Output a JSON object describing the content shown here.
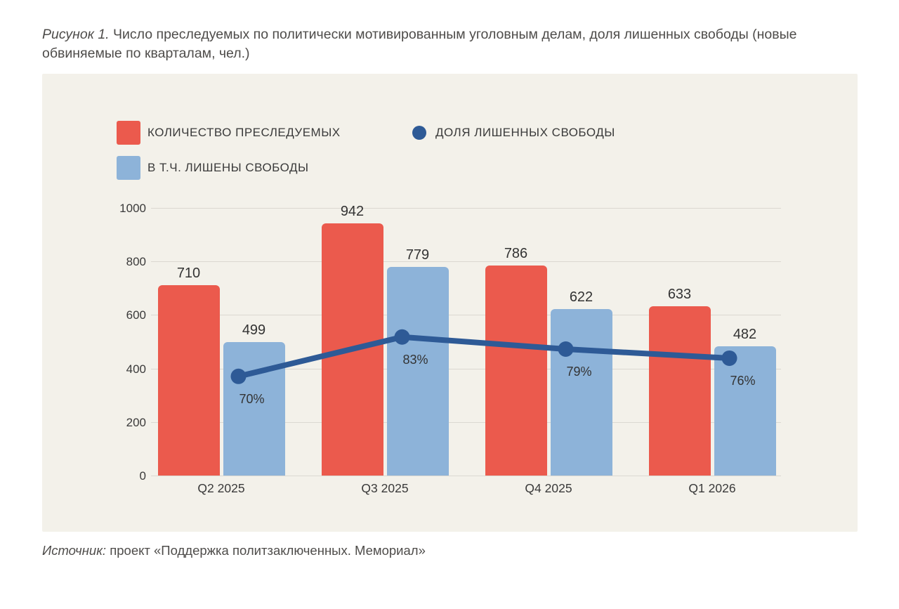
{
  "page": {
    "title_prefix": "Рисунок 1.",
    "title_rest": "Число преследуемых по политически мотивированным уголовным делам, доля лишенных свободы (новые обвиняемые по кварталам, чел.)",
    "source_prefix": "Источник:",
    "source_text": "проект «Поддержка политзаключенных. Мемориал»"
  },
  "legend": {
    "prosecuted_label": "КОЛИЧЕСТВО ПРЕСЛЕДУЕМЫХ",
    "deprived_share_label": "ДОЛЯ ЛИШЕННЫХ СВОБОДЫ",
    "deprived_label": "В Т.Ч. ЛИШЕНЫ СВОБОДЫ"
  },
  "colors": {
    "prosecuted_bar": "#EB5A4D",
    "deprived_bar": "#8DB3D9",
    "trend_line": "#2E5A96",
    "panel_background": "#F3F1EA",
    "grid_line": "#DBD8D1",
    "text": "#3A3A3A"
  },
  "chart_data": {
    "type": "bar",
    "categories": [
      "Q2 2025",
      "Q3 2025",
      "Q4 2025",
      "Q1 2026"
    ],
    "series": [
      {
        "key": "prosecuted",
        "name": "КОЛИЧЕСТВО ПРЕСЛЕДУЕМЫХ",
        "type": "bar",
        "values": [
          710,
          942,
          786,
          633
        ]
      },
      {
        "key": "deprived",
        "name": "В Т.Ч. ЛИШЕНЫ СВОБОДЫ",
        "type": "bar",
        "values": [
          499,
          779,
          622,
          482
        ]
      },
      {
        "key": "deprived_share",
        "name": "ДОЛЯ ЛИШЕННЫХ СВОБОДЫ",
        "type": "line",
        "unit": "%",
        "values": [
          70,
          83,
          79,
          76
        ]
      }
    ],
    "ylim": [
      0,
      1000
    ],
    "yticks": [
      0,
      200,
      400,
      600,
      800,
      1000
    ],
    "grid": true,
    "legend_position": "top-left"
  }
}
